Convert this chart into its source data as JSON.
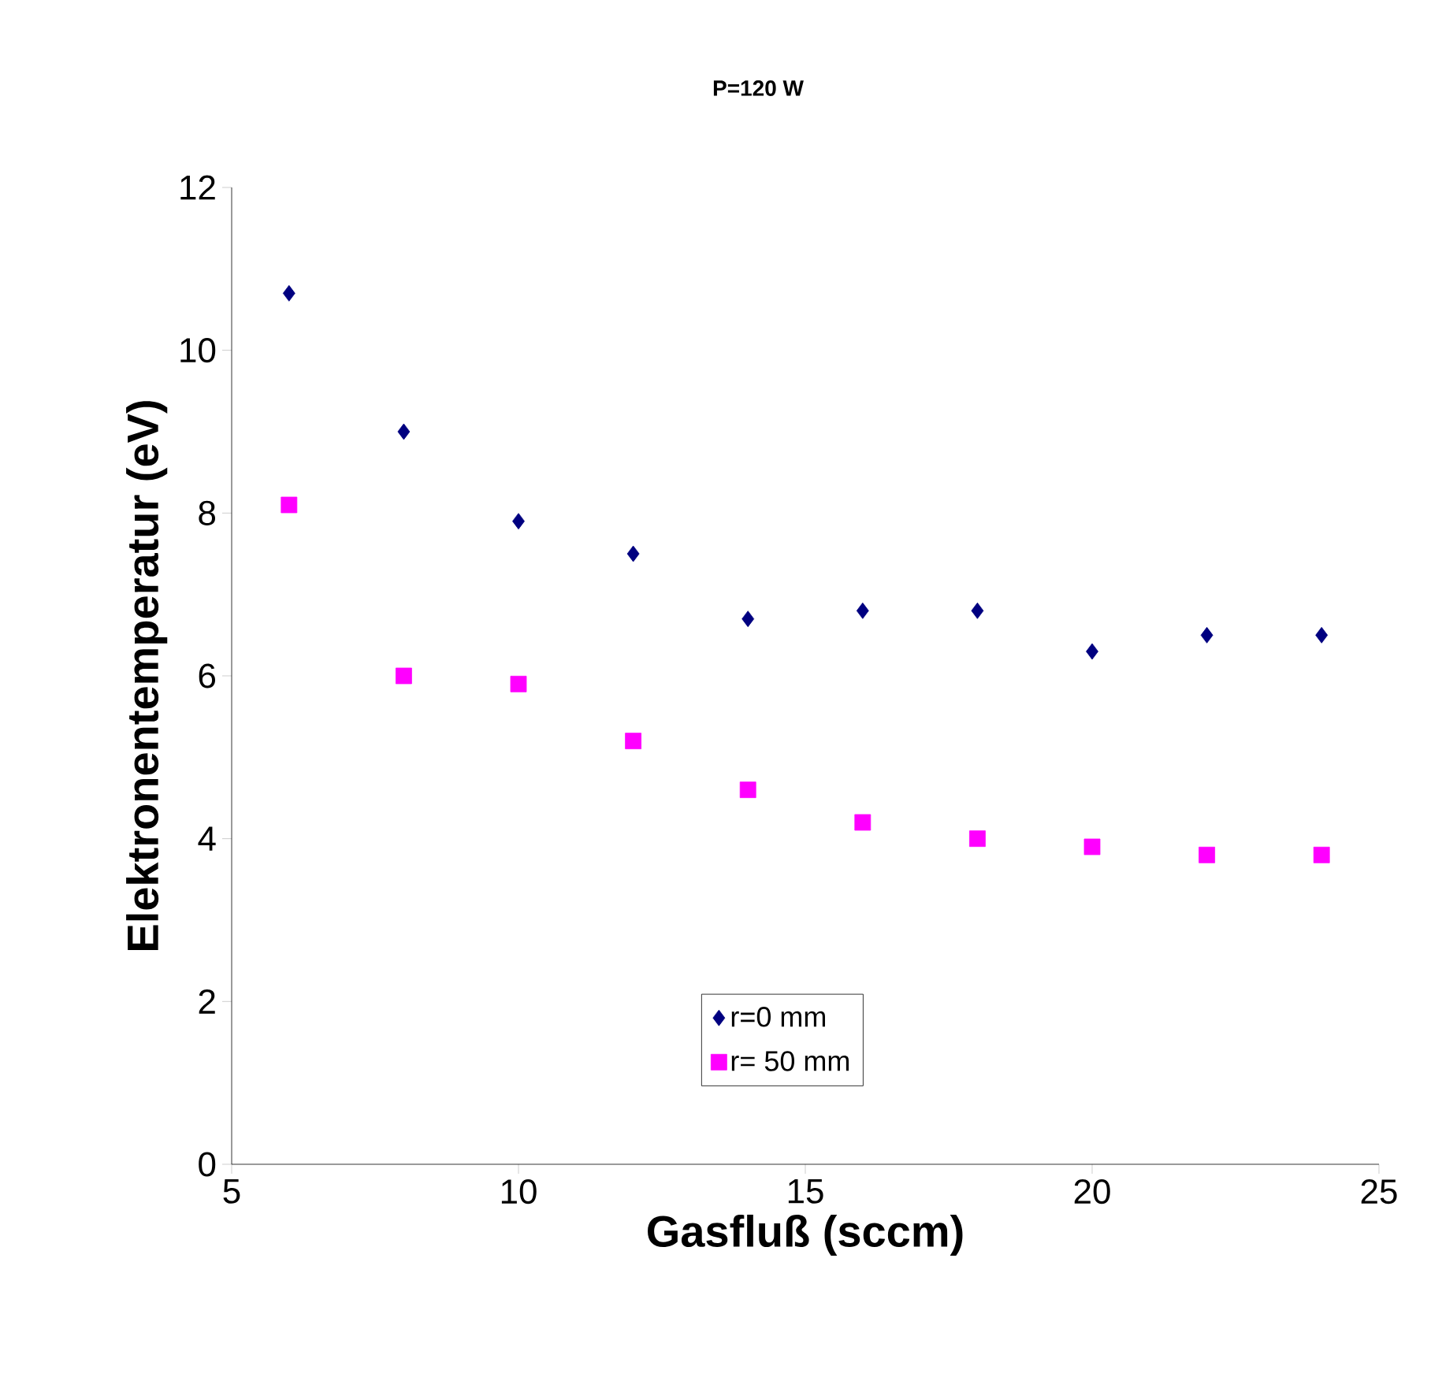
{
  "chart_data": {
    "type": "scatter",
    "title": "P=120 W",
    "xlabel": "Gasfluß (sccm)",
    "ylabel": "Elektronentemperatur (eV)",
    "x": [
      6,
      8,
      10,
      12,
      14,
      16,
      18,
      20,
      22,
      24
    ],
    "series": [
      {
        "name": "r=0 mm",
        "color": "#000080",
        "marker": "diamond",
        "values": [
          10.7,
          9.0,
          7.9,
          7.5,
          6.7,
          6.8,
          6.8,
          6.3,
          6.5,
          6.5
        ]
      },
      {
        "name": "r= 50 mm",
        "color": "#ff00ff",
        "marker": "square",
        "values": [
          8.1,
          6.0,
          5.9,
          5.2,
          4.6,
          4.2,
          4.0,
          3.9,
          3.8,
          3.8
        ]
      }
    ],
    "xlim": [
      5,
      25
    ],
    "ylim": [
      0,
      12
    ],
    "xticks": [
      5,
      10,
      15,
      20,
      25
    ],
    "yticks": [
      0,
      2,
      4,
      6,
      8,
      10,
      12
    ],
    "grid": false,
    "legend": "bottom"
  }
}
